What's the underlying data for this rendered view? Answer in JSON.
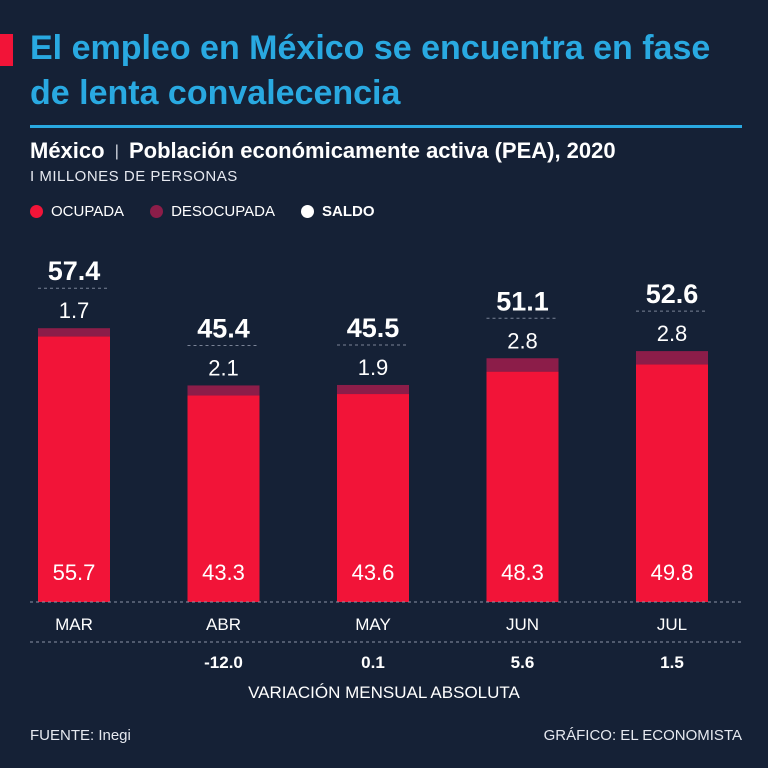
{
  "header": {
    "headline": "El empleo en México se encuentra en fase de lenta convalecencia",
    "subtitle_country": "México",
    "subtitle_separator": "|",
    "subtitle_text": "Población económicamente activa (PEA), 2020",
    "units": "I MILLONES DE PERSONAS"
  },
  "legend": [
    {
      "label": "OCUPADA",
      "color": "#f21438"
    },
    {
      "label": "DESOCUPADA",
      "color": "#8c1d49"
    },
    {
      "label": "SALDO",
      "color": "#ffffff"
    }
  ],
  "chart_data": {
    "type": "bar",
    "stacked": true,
    "categories": [
      "MAR",
      "ABR",
      "MAY",
      "JUN",
      "JUL"
    ],
    "series": [
      {
        "name": "OCUPADA",
        "color": "#f21438",
        "values": [
          55.7,
          43.3,
          43.6,
          48.3,
          49.8
        ]
      },
      {
        "name": "DESOCUPADA",
        "color": "#8c1d49",
        "values": [
          1.7,
          2.1,
          1.9,
          2.8,
          2.8
        ]
      }
    ],
    "totals_label": "SALDO",
    "totals": [
      57.4,
      45.4,
      45.5,
      51.1,
      52.6
    ],
    "monthly_change": [
      "",
      "-12.0",
      "0.1",
      "5.6",
      "1.5"
    ],
    "monthly_change_label": "VARIACIÓN MENSUAL ABSOLUTA",
    "ylim": [
      0,
      60
    ],
    "grid": false
  },
  "footer": {
    "source": "FUENTE: Inegi",
    "credit": "GRÁFICO: EL ECONOMISTA"
  }
}
